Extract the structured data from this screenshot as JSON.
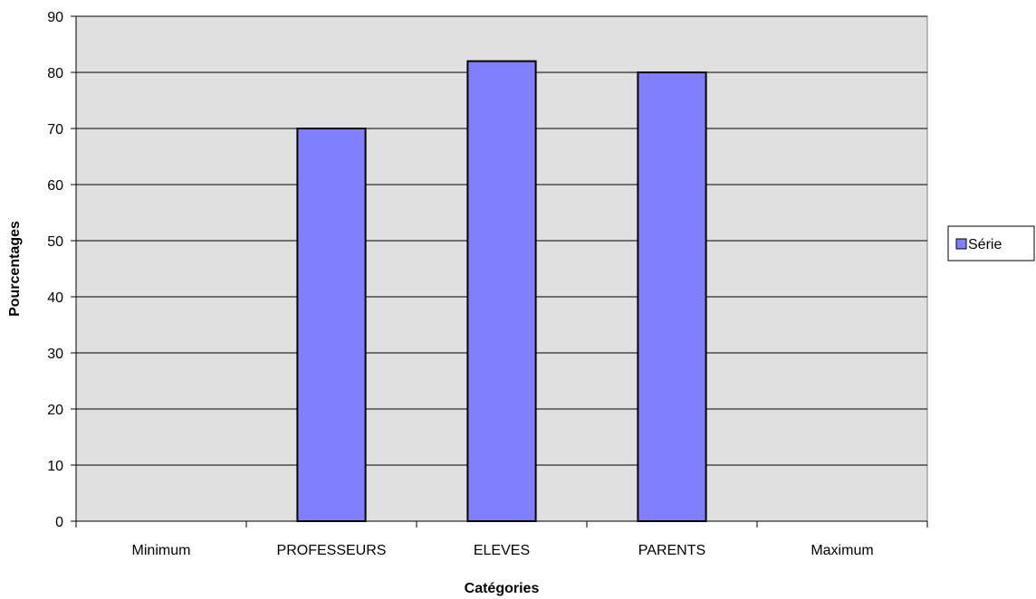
{
  "chart_data": {
    "type": "bar",
    "categories": [
      "Minimum",
      "PROFESSEURS",
      "ELEVES",
      "PARENTS",
      "Maximum"
    ],
    "series": [
      {
        "name": "Série",
        "values": [
          0,
          70,
          82,
          80,
          0
        ],
        "color": "#8080ff"
      }
    ],
    "xlabel": "Catégories",
    "ylabel": "Pourcentages",
    "ylim": [
      0,
      90
    ],
    "yticks": [
      0,
      10,
      20,
      30,
      40,
      50,
      60,
      70,
      80,
      90
    ],
    "grid": true,
    "legend": "right",
    "plot_background": "#e0e0e0",
    "gridline_color": "#000000"
  }
}
